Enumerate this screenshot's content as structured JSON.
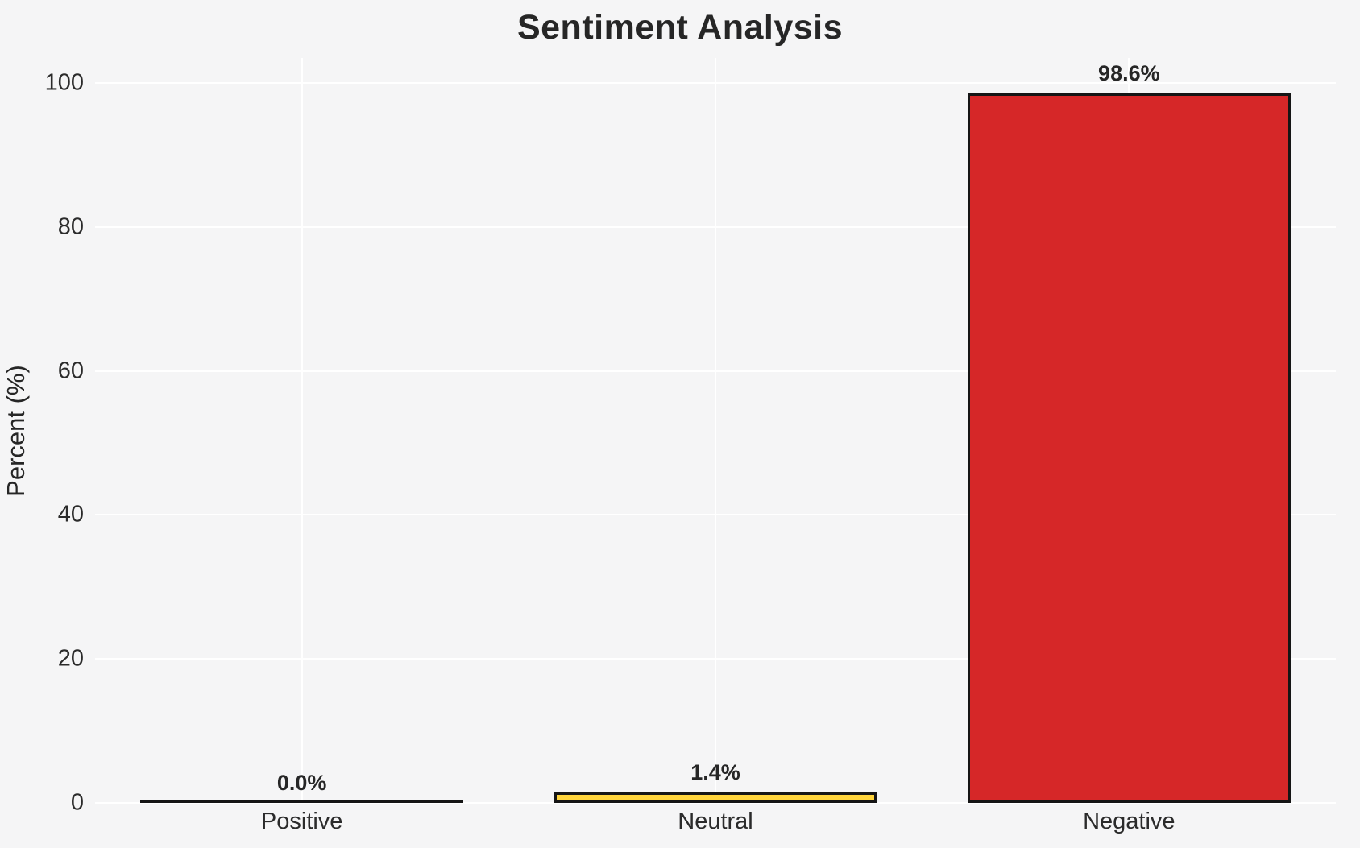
{
  "chart_data": {
    "type": "bar",
    "title": "Sentiment Analysis",
    "xlabel": "",
    "ylabel": "Percent (%)",
    "categories": [
      "Positive",
      "Neutral",
      "Negative"
    ],
    "values": [
      0.0,
      1.4,
      98.6
    ],
    "value_labels": [
      "0.0%",
      "1.4%",
      "98.6%"
    ],
    "bar_colors": [
      "none",
      "#FFD43B",
      "#D62728"
    ],
    "bar_edge_color": "#151515",
    "bar_edge_width": 3,
    "yticks": [
      0,
      20,
      40,
      60,
      80,
      100
    ],
    "ylim": [
      0,
      103.5
    ],
    "grid": true,
    "legend": "none",
    "colors": {
      "background": "#f5f5f6",
      "gridline": "#ffffff",
      "text": "#262626",
      "tick_text": "#2b2b2b"
    }
  }
}
